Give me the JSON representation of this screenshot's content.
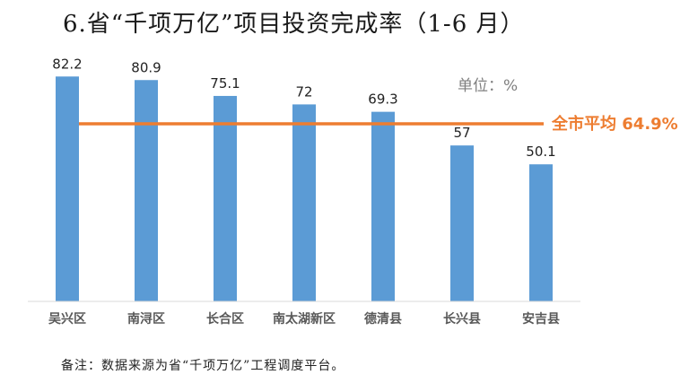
{
  "title": "6.省“千项万亿”项目投资完成率（1-6 月）",
  "footnote": "备注：数据来源为省“千项万亿”工程调度平台。",
  "chart_data": {
    "type": "bar",
    "title": "6.省“千项万亿”项目投资完成率（1-6 月）",
    "categories": [
      "吴兴区",
      "南浔区",
      "长合区",
      "南太湖新区",
      "德清县",
      "长兴县",
      "安吉县"
    ],
    "values": [
      82.2,
      80.9,
      75.1,
      72,
      69.3,
      57,
      50.1
    ],
    "value_labels": [
      "82.2",
      "80.9",
      "75.1",
      "72",
      "69.3",
      "57",
      "50.1"
    ],
    "unit_label": "单位：%",
    "reference_line": {
      "value": 64.9,
      "label": "全市平均 64.9%"
    },
    "ylim": [
      0,
      100
    ],
    "grid": false,
    "legend": "none",
    "colors": {
      "bar": "#5b9bd5",
      "reference_line": "#ed7d31",
      "axis": "#d9d9d9"
    }
  }
}
